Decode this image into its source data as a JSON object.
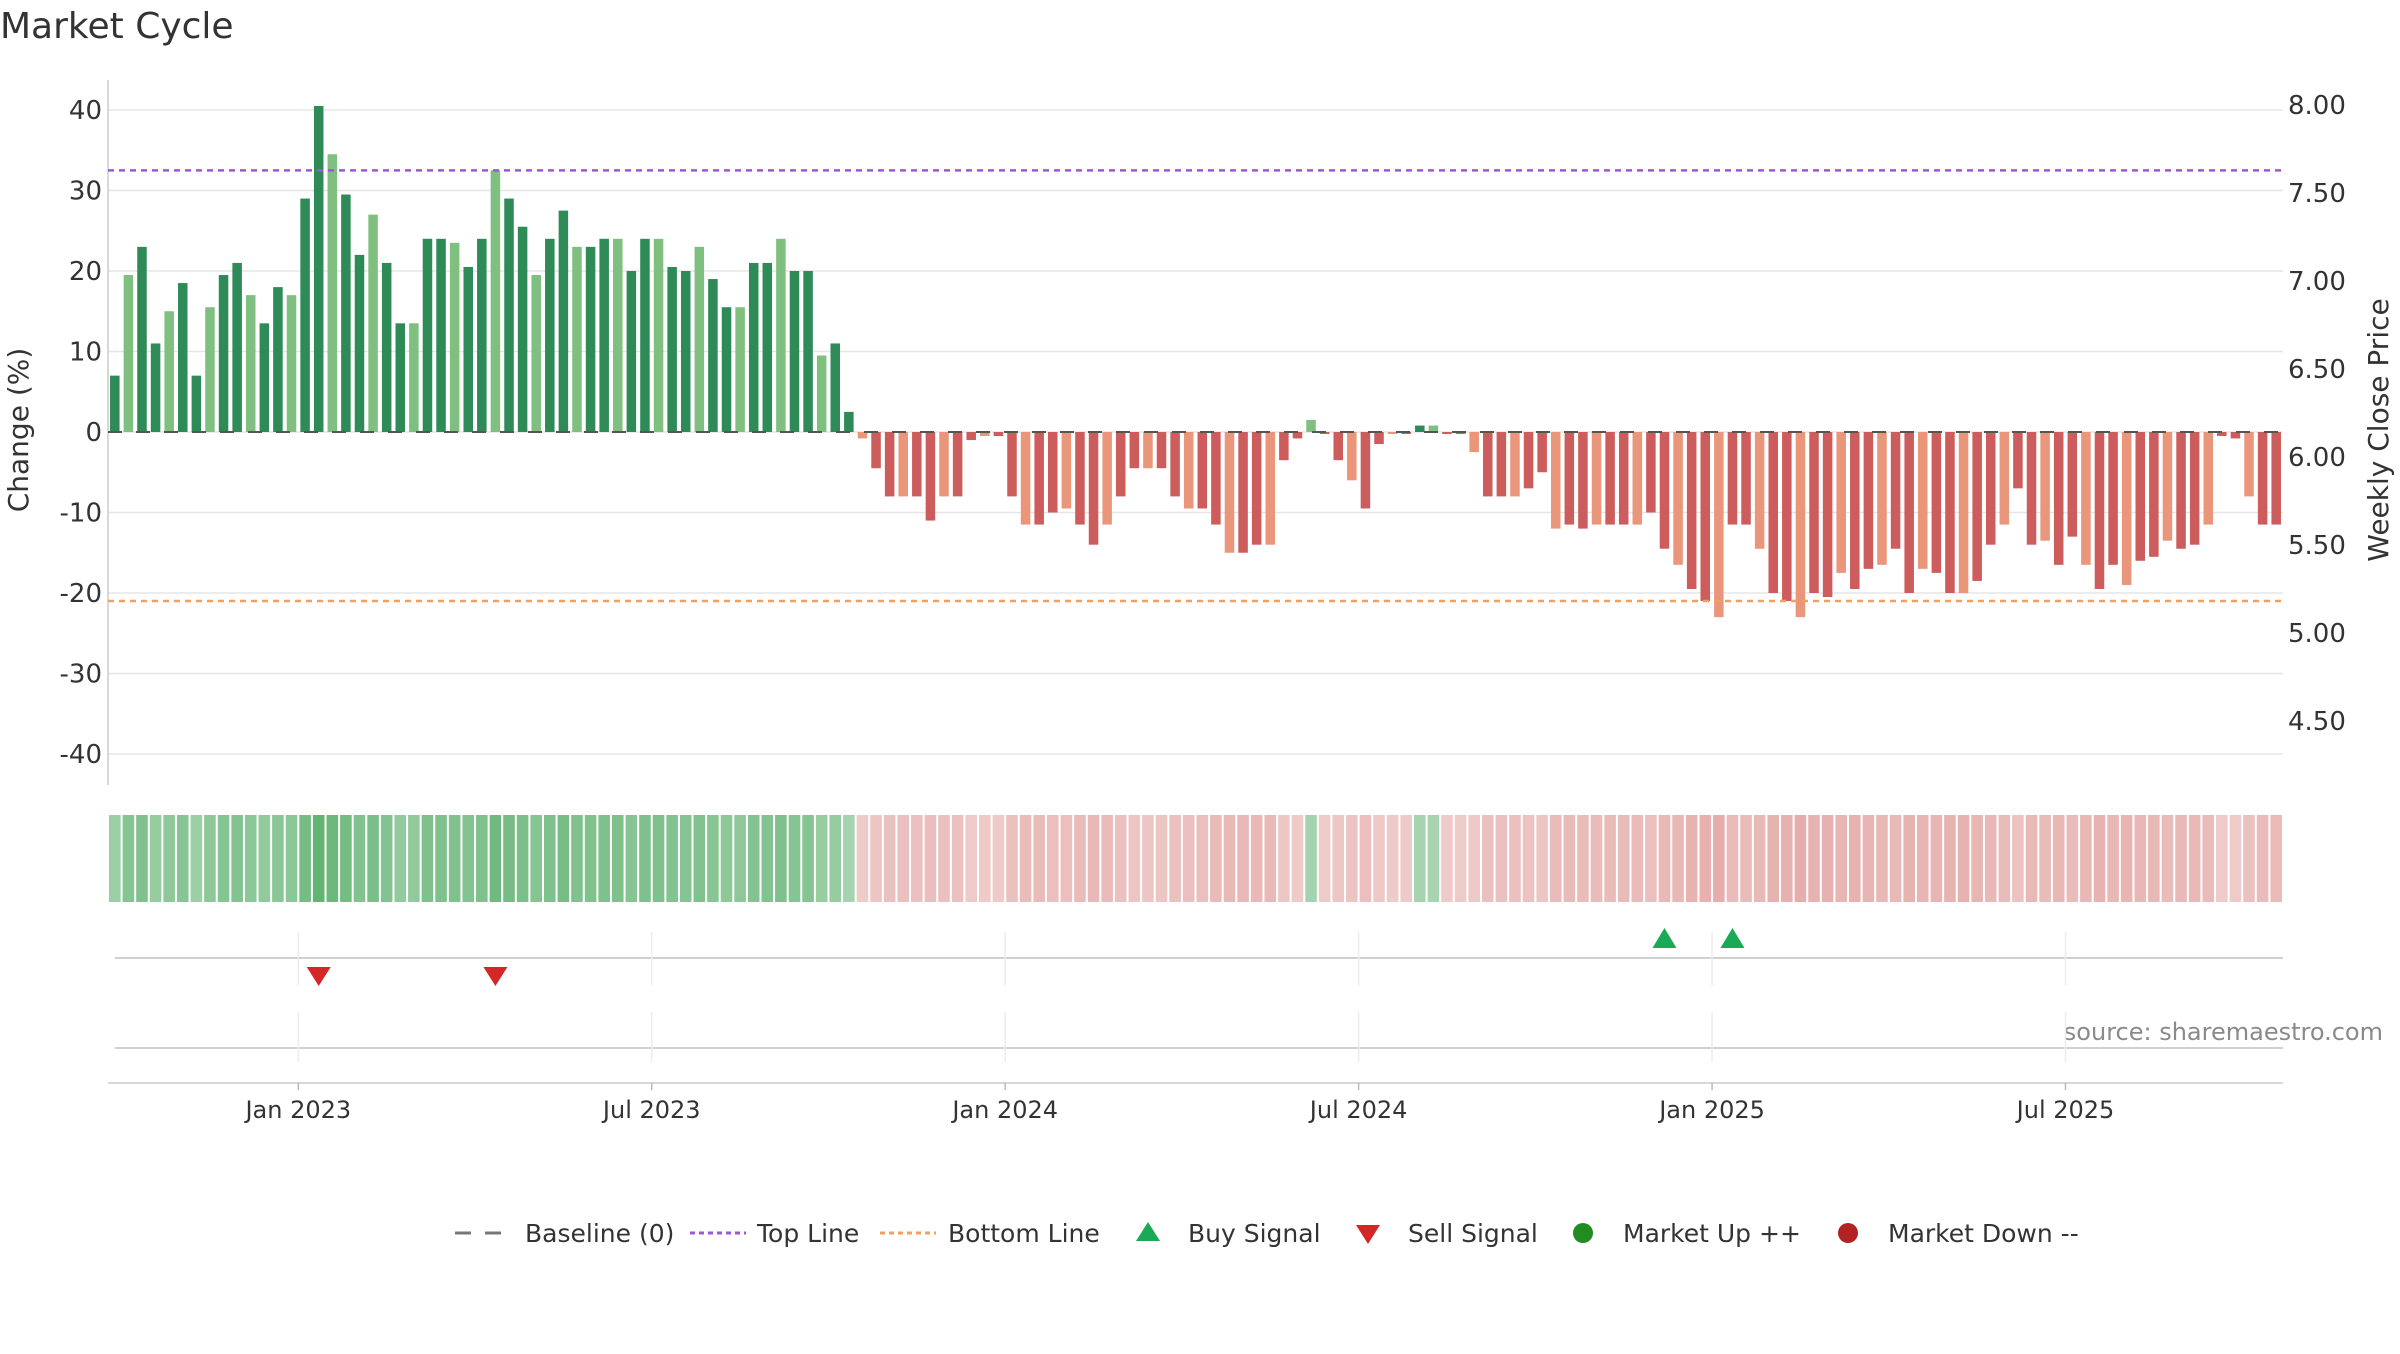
{
  "chart_data": {
    "type": "bar",
    "title": "Market Cycle",
    "ylabel_left": "Change (%)",
    "ylabel_right": "Weekly Close Price",
    "y_left_ticks": [
      40,
      30,
      20,
      10,
      0,
      -10,
      -20,
      -30,
      -40
    ],
    "y_left_range": [
      -45,
      44
    ],
    "y_right_ticks": [
      "8.00",
      "7.50",
      "7.00",
      "6.50",
      "6.00",
      "5.50",
      "5.00",
      "4.50"
    ],
    "x_ticks": [
      "Jan 2023",
      "Jul 2023",
      "Jan 2024",
      "Jul 2024",
      "Jan 2025",
      "Jul 2025"
    ],
    "x_tick_week_index": [
      14,
      40,
      66,
      92,
      118,
      144
    ],
    "top_line": 32.5,
    "bottom_line": -21,
    "values": [
      7,
      19.5,
      23,
      11,
      15,
      18.5,
      7,
      15.5,
      19.5,
      21,
      17,
      13.5,
      18,
      17,
      29,
      40.5,
      34.5,
      29.5,
      22,
      27,
      21,
      13.5,
      13.5,
      24,
      24,
      23.5,
      20.5,
      24,
      32.5,
      29,
      25.5,
      19.5,
      24,
      27.5,
      23,
      23,
      24,
      24,
      20,
      24,
      24,
      20.5,
      20,
      23,
      19,
      15.5,
      15.5,
      21,
      21,
      24,
      20,
      20,
      9.5,
      11,
      2.5,
      -0.8,
      -4.5,
      -8,
      -8,
      -8,
      -11,
      -8,
      -8,
      -1,
      -0.5,
      -0.5,
      -8,
      -11.5,
      -11.5,
      -10,
      -9.5,
      -11.5,
      -14,
      -11.5,
      -8,
      -4.5,
      -4.5,
      -4.5,
      -8,
      -9.5,
      -9.5,
      -11.5,
      -15,
      -15,
      -14,
      -14,
      -3.5,
      -0.8,
      1.5,
      -0.2,
      -3.5,
      -6,
      -9.5,
      -1.5,
      -0.2,
      -0.2,
      0.8,
      0.8,
      -0.2,
      -0.2,
      -2.5,
      -8,
      -8,
      -8,
      -7,
      -5,
      -12,
      -11.5,
      -12,
      -11.5,
      -11.5,
      -11.5,
      -11.5,
      -10,
      -14.5,
      -16.5,
      -19.5,
      -21,
      -23,
      -11.5,
      -11.5,
      -14.5,
      -20,
      -21,
      -23,
      -20,
      -20.5,
      -17.5,
      -19.5,
      -17,
      -16.5,
      -14.5,
      -20,
      -17,
      -17.5,
      -20,
      -20,
      -18.5,
      -14,
      -11.5,
      -7,
      -14,
      -13.5,
      -16.5,
      -13,
      -16.5,
      -19.5,
      -16.5,
      -19,
      -16,
      -15.5,
      -13.5,
      -14.5,
      -14,
      -11.5,
      -0.5,
      -0.8,
      -8,
      -11.5,
      -11.5
    ],
    "buy_signals_week": [
      114,
      119
    ],
    "sell_signals_week": [
      15,
      28
    ],
    "source": "source: sharemaestro.com",
    "legend": [
      "Baseline (0)",
      "Top Line",
      "Bottom Line",
      "Buy Signal",
      "Sell Signal",
      "Market Up ++",
      "Market Down --"
    ]
  },
  "colors": {
    "up_strong": "#2e8b57",
    "up_light": "#7fbf7f",
    "down_strong": "#cd5c5c",
    "down_light": "#e9967a",
    "top_line": "#9b59d0",
    "bottom_line": "#f0a060",
    "buy": "#1aaa55",
    "sell": "#d62728",
    "market_up": "#228b22",
    "market_down": "#b22222",
    "baseline": "#777777",
    "grid": "#e6e6e6",
    "text": "#333333"
  }
}
